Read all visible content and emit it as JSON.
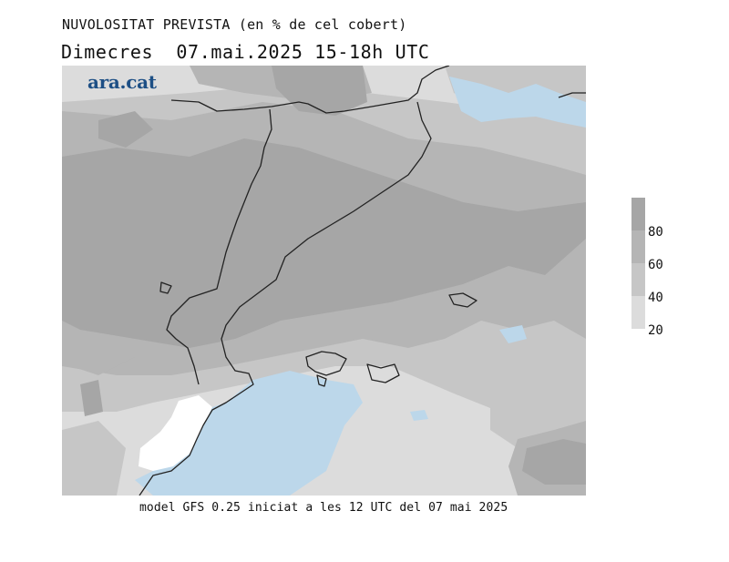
{
  "header": {
    "title": "NUVOLOSITAT PREVISTA (en % de cel cobert)",
    "subtitle": "Dimecres  07.mai.2025 15-18h UTC"
  },
  "logo": {
    "text": "ara.cat"
  },
  "legend": {
    "ticks": [
      "80",
      "60",
      "40",
      "20"
    ],
    "levels": [
      {
        "range": "80-100",
        "color": "#a6a6a6"
      },
      {
        "range": "60-80",
        "color": "#b5b5b5"
      },
      {
        "range": "40-60",
        "color": "#c6c6c6"
      },
      {
        "range": "20-40",
        "color": "#dcdcdc"
      }
    ]
  },
  "colors": {
    "clear_sky": "#ffffff",
    "low_cloud_water": "#bcd7ea",
    "coastline": "#222222"
  },
  "footer": {
    "text": "model GFS 0.25 iniciat a les 12 UTC del 07 mai 2025"
  }
}
